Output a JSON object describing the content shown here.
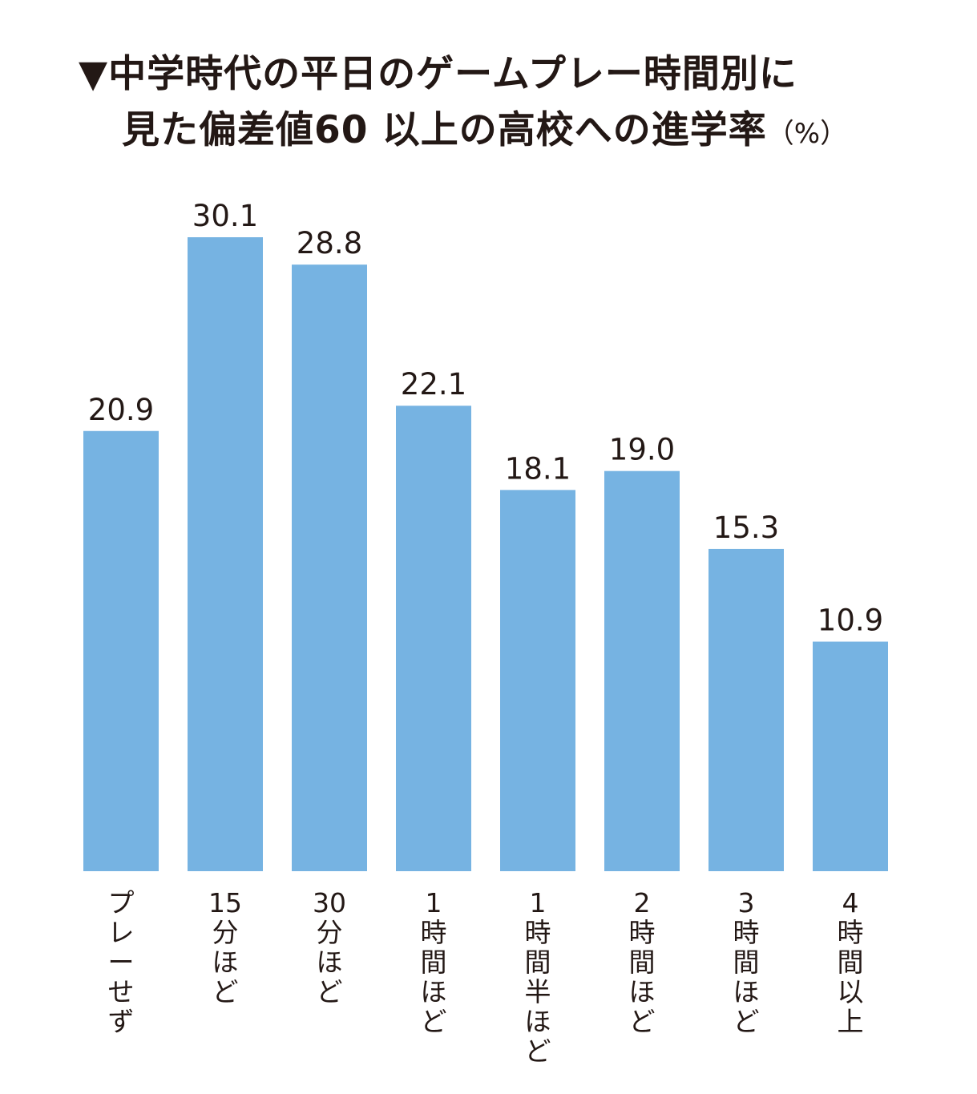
{
  "title_line1": "▼中学時代の平日のゲームプレー時間別に",
  "title_line2": "見た偏差値60 以上の高校への進学率",
  "title_unit": "（%）",
  "chart_data": {
    "type": "bar",
    "title": "▼中学時代の平日のゲームプレー時間別に見た偏差値60 以上の高校への進学率（%）",
    "categories": [
      "プレーせず",
      "15分ほど",
      "30分ほど",
      "1時間ほど",
      "1時間半ほど",
      "2時間ほど",
      "3時間ほど",
      "4時間以上"
    ],
    "values": [
      20.9,
      30.1,
      28.8,
      22.1,
      18.1,
      19.0,
      15.3,
      10.9
    ],
    "value_labels": [
      "20.9",
      "30.1",
      "28.8",
      "22.1",
      "18.1",
      "19.0",
      "15.3",
      "10.9"
    ],
    "category_label_lines": [
      [
        "プ",
        "レ",
        "ー",
        "せ",
        "ず"
      ],
      [
        "15",
        "分",
        "ほ",
        "ど"
      ],
      [
        "30",
        "分",
        "ほ",
        "ど"
      ],
      [
        "1",
        "時",
        "間",
        "ほ",
        "ど"
      ],
      [
        "1",
        "時",
        "間",
        "半",
        "ほ",
        "ど"
      ],
      [
        "2",
        "時",
        "間",
        "ほ",
        "ど"
      ],
      [
        "3",
        "時",
        "間",
        "ほ",
        "ど"
      ],
      [
        "4",
        "時",
        "間",
        "以",
        "上"
      ]
    ],
    "xlabel": "",
    "ylabel": "",
    "ylim": [
      0,
      30.1
    ],
    "grid": false,
    "bar_color": "#76b3e2"
  }
}
